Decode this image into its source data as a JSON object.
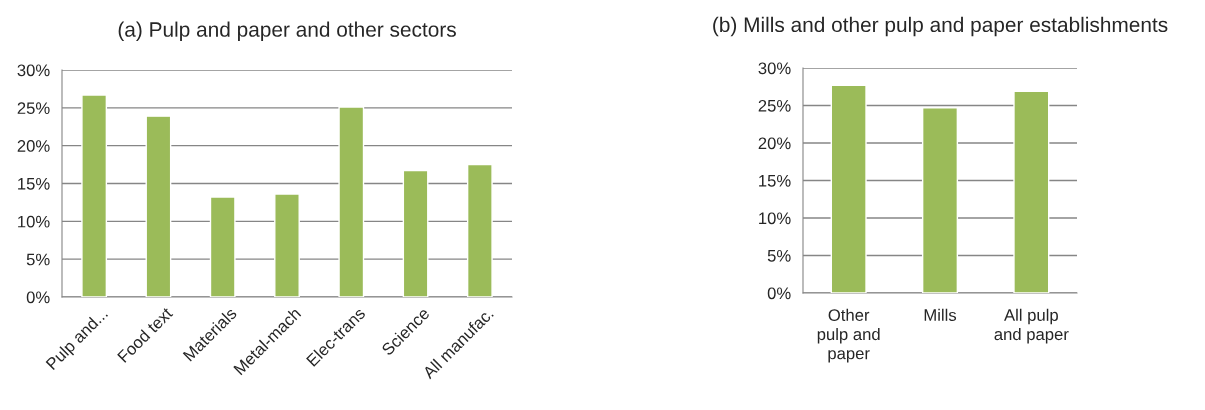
{
  "chart_data": [
    {
      "type": "bar",
      "title": "(a) Pulp and paper and other sectors",
      "categories": [
        "Pulp and...",
        "Food text",
        "Materials",
        "Metal-mach",
        "Elec-trans",
        "Science",
        "All manufac."
      ],
      "values": [
        26.7,
        23.9,
        13.2,
        13.6,
        25.1,
        16.7,
        17.5
      ],
      "color": "#9bbb59",
      "ylim": [
        0,
        30
      ],
      "yticks": [
        {
          "value": 0,
          "label": "0%"
        },
        {
          "value": 5,
          "label": "5%"
        },
        {
          "value": 10,
          "label": "10%"
        },
        {
          "value": 15,
          "label": "15%"
        },
        {
          "value": 20,
          "label": "20%"
        },
        {
          "value": 25,
          "label": "25%"
        },
        {
          "value": 30,
          "label": "30%"
        }
      ],
      "grid": "y"
    },
    {
      "type": "bar",
      "title": "(b) Mills and other pulp and paper establishments",
      "categories": [
        "Other pulp and paper",
        "Mills",
        "All pulp and paper"
      ],
      "values": [
        27.7,
        24.7,
        26.9
      ],
      "color": "#9bbb59",
      "ylim": [
        0,
        30
      ],
      "yticks": [
        {
          "value": 0,
          "label": "0%"
        },
        {
          "value": 5,
          "label": "5%"
        },
        {
          "value": 10,
          "label": "10%"
        },
        {
          "value": 15,
          "label": "15%"
        },
        {
          "value": 20,
          "label": "20%"
        },
        {
          "value": 25,
          "label": "25%"
        },
        {
          "value": 30,
          "label": "30%"
        }
      ],
      "grid": "y"
    }
  ]
}
